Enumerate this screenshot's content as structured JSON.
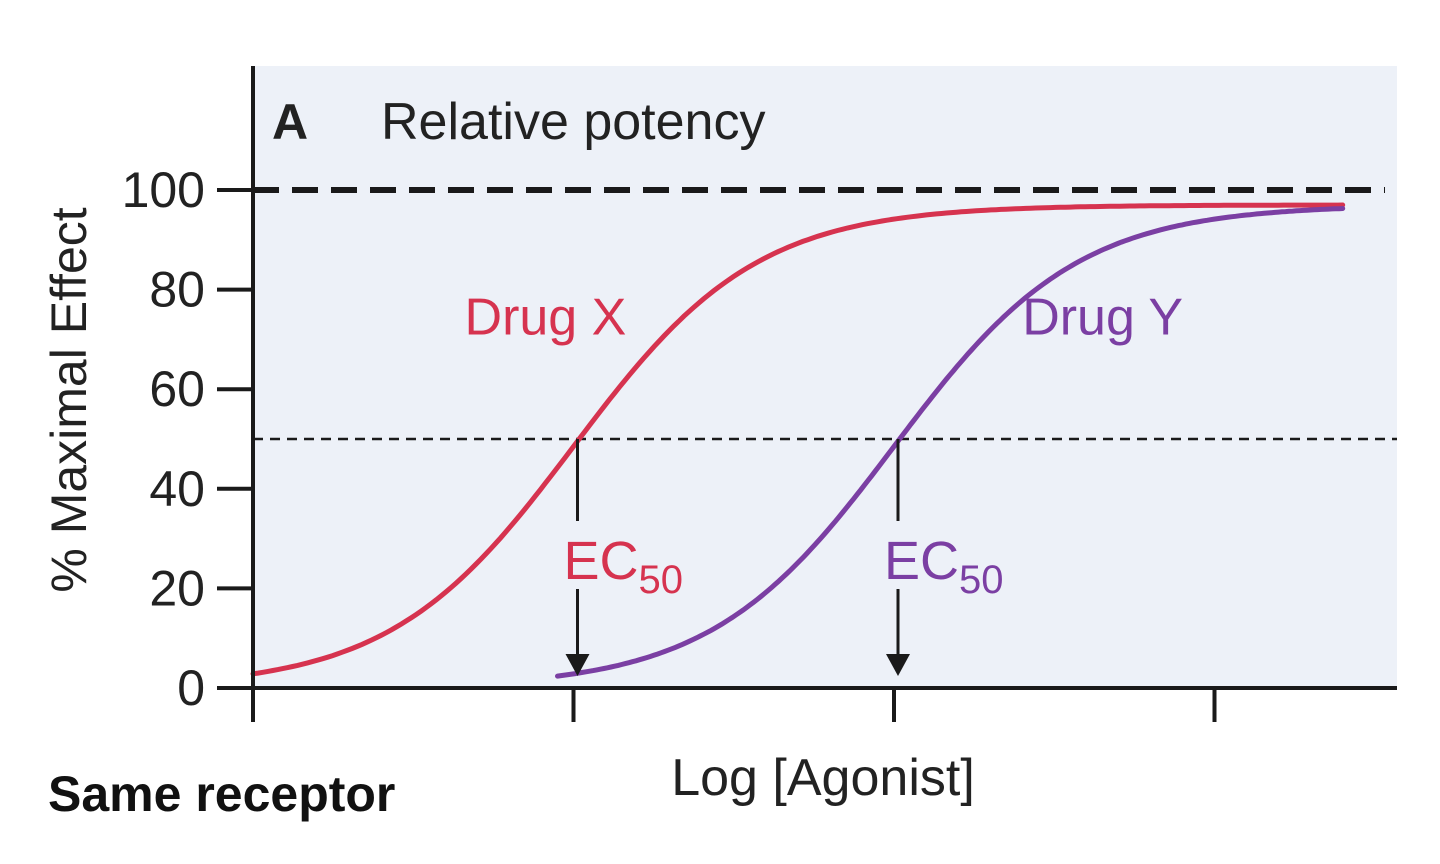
{
  "chart_data": {
    "type": "line",
    "panel_letter": "A",
    "title": "Relative potency",
    "xlabel": "Log [Agonist]",
    "ylabel": "% Maximal Effect",
    "ylim": [
      0,
      120
    ],
    "xlim": [
      0,
      3.4
    ],
    "y_ticks": [
      "0",
      "20",
      "40",
      "60",
      "80",
      "100"
    ],
    "x_ticks": [
      0,
      1,
      2,
      3
    ],
    "reference_lines": [
      {
        "y": 100,
        "style": "bold-dashed"
      },
      {
        "y": 50,
        "style": "dashed"
      }
    ],
    "series": [
      {
        "name": "Drug X",
        "color": "#d6334f",
        "ec50": 1.0,
        "max": 97,
        "slope": 3.5,
        "x_range": [
          0,
          3.4
        ]
      },
      {
        "name": "Drug Y",
        "color": "#7b3fa3",
        "ec50": 2.0,
        "max": 97,
        "slope": 3.5,
        "x_range": [
          0.95,
          3.4
        ]
      }
    ],
    "annotations": [
      {
        "series": "Drug X",
        "label_main": "EC",
        "label_sub": "50",
        "x": 1.0
      },
      {
        "series": "Drug Y",
        "label_main": "EC",
        "label_sub": "50",
        "x": 2.0
      }
    ],
    "background_color": "#edf1f8",
    "grid": false
  },
  "caption": "Same receptor"
}
